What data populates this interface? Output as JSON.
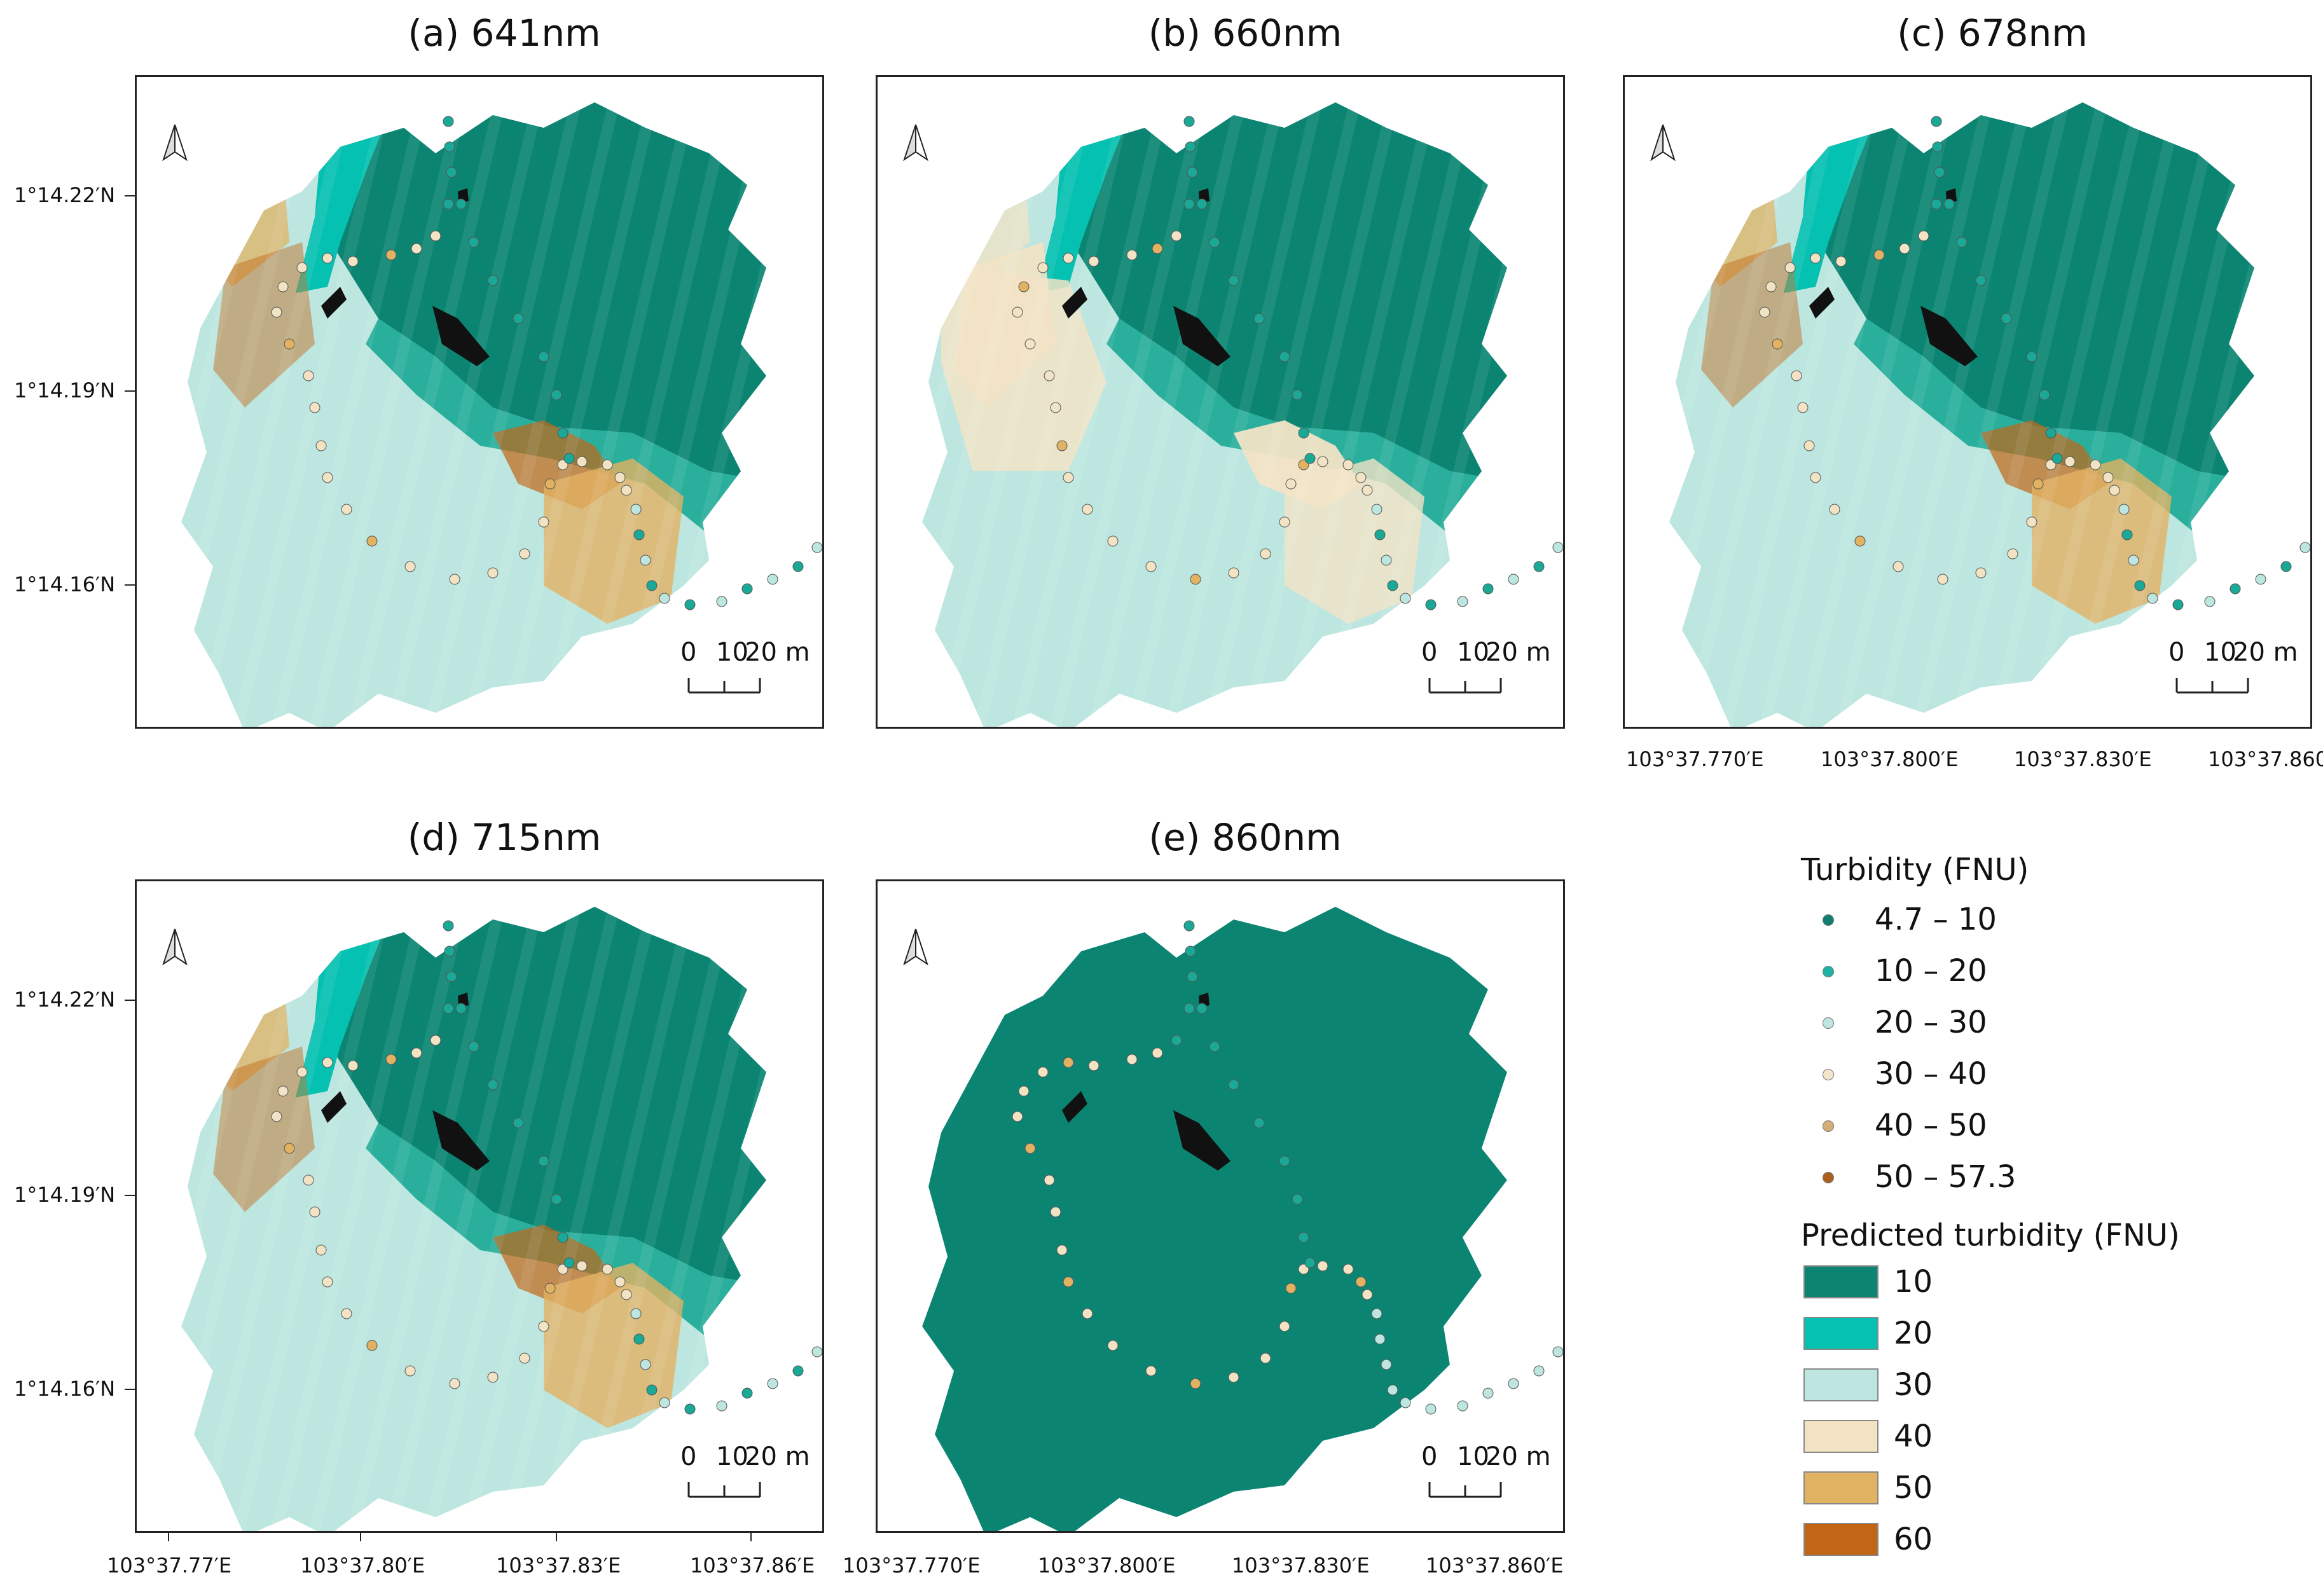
{
  "panels": [
    {
      "id": "a",
      "title": "(a) 641nm",
      "variant": "a"
    },
    {
      "id": "b",
      "title": "(b) 660nm",
      "variant": "b"
    },
    {
      "id": "c",
      "title": "(c) 678nm",
      "variant": "c"
    },
    {
      "id": "d",
      "title": "(d) 715nm",
      "variant": "d"
    },
    {
      "id": "e",
      "title": "(e) 860nm",
      "variant": "e"
    }
  ],
  "lat_ticks_row1": [
    "1°14.22′N",
    "1°14.19′N",
    "1°14.16′N"
  ],
  "lat_ticks_row2": [
    "1°14.22′N",
    "1°14.19′N",
    "1°14.16′N"
  ],
  "lon_ticks_c": [
    "103°37.770′E",
    "103°37.800′E",
    "103°37.830′E",
    "103°37.860′E"
  ],
  "lon_ticks_d": [
    "103°37.77′E",
    "103°37.80′E",
    "103°37.83′E",
    "103°37.86′E"
  ],
  "lon_ticks_e": [
    "103°37.770′E",
    "103°37.800′E",
    "103°37.830′E",
    "103°37.860′E"
  ],
  "scale_bar": {
    "labels": [
      "0",
      "10",
      "20 m"
    ]
  },
  "legend": {
    "turbidity_title": "Turbidity (FNU)",
    "turbidity_classes": [
      {
        "label": "4.7 – 10",
        "color": "#0f7f72"
      },
      {
        "label": "10 – 20",
        "color": "#1fb3a6"
      },
      {
        "label": "20 – 30",
        "color": "#bfe5e0"
      },
      {
        "label": "30 – 40",
        "color": "#f1e5cc"
      },
      {
        "label": "40 – 50",
        "color": "#d6ad74"
      },
      {
        "label": "50 – 57.3",
        "color": "#a9601f"
      }
    ],
    "predicted_title": "Predicted turbidity (FNU)",
    "predicted_classes": [
      {
        "label": "10",
        "color": "#0b8572"
      },
      {
        "label": "20",
        "color": "#05c1b1"
      },
      {
        "label": "30",
        "color": "#bde6e0"
      },
      {
        "label": "40",
        "color": "#f2e3c5"
      },
      {
        "label": "50",
        "color": "#e2b263"
      },
      {
        "label": "60",
        "color": "#c26515"
      }
    ]
  },
  "colors": {
    "dark_teal": "#0b8572",
    "mid_teal": "#1aa996",
    "bright_teal": "#05c1b1",
    "pale_teal": "#bde6e0",
    "beige": "#f2e3c5",
    "tan": "#e2b263",
    "brown": "#c26515",
    "obstacle": "#111111"
  }
}
